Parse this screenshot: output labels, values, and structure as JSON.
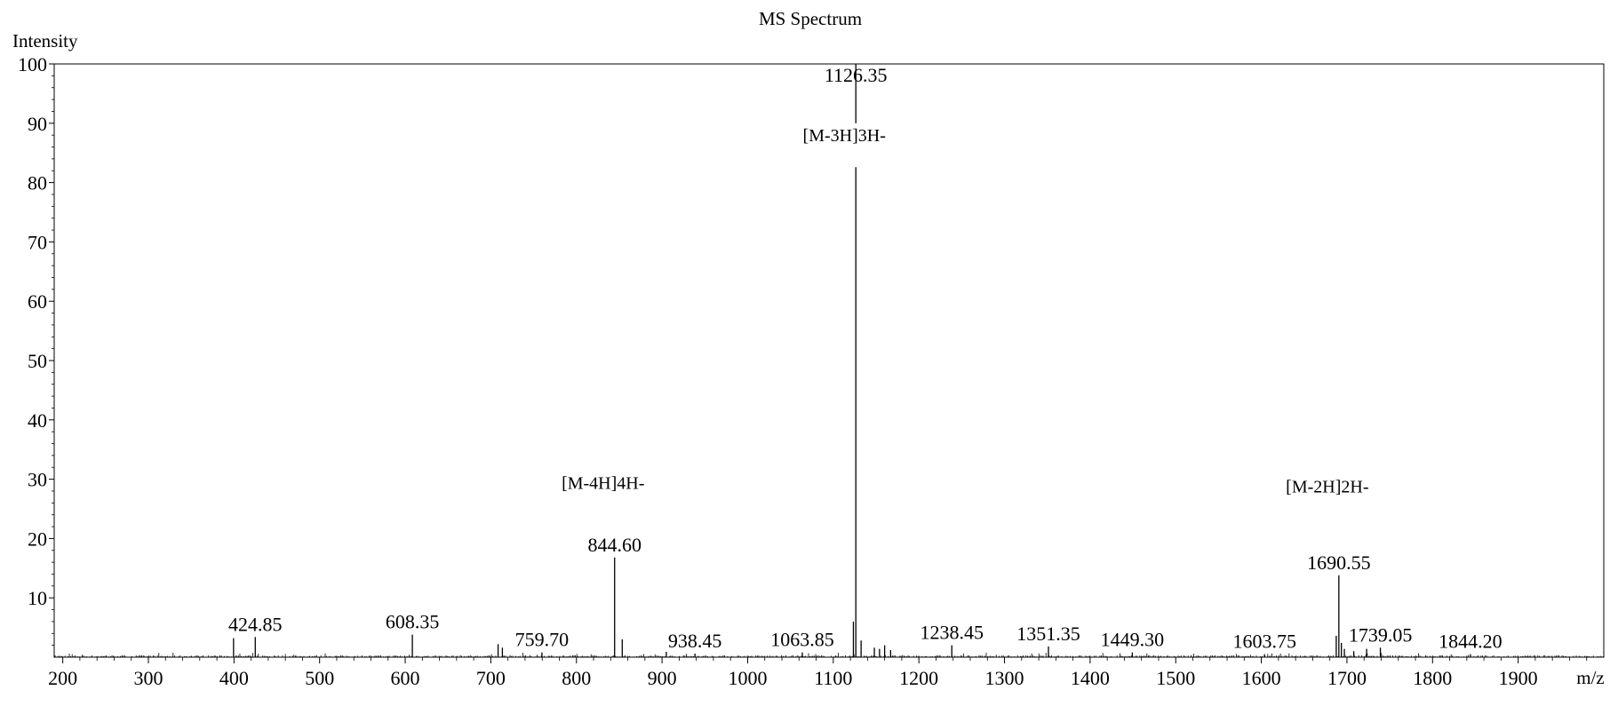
{
  "chart_data": {
    "type": "bar",
    "title": "MS Spectrum",
    "ylabel": "Intensity",
    "xlabel": "m/z",
    "xlim": [
      190,
      2000
    ],
    "ylim": [
      0,
      100
    ],
    "grid": false,
    "x_ticks": [
      200,
      300,
      400,
      500,
      600,
      700,
      800,
      900,
      1000,
      1100,
      1200,
      1300,
      1400,
      1500,
      1600,
      1700,
      1800,
      1900
    ],
    "y_ticks": [
      10,
      20,
      30,
      40,
      50,
      60,
      70,
      80,
      90,
      100
    ],
    "peaks": [
      {
        "mz": 399.5,
        "intensity": 3.2
      },
      {
        "mz": 424.85,
        "intensity": 3.4,
        "label": "424.85"
      },
      {
        "mz": 608.35,
        "intensity": 3.8,
        "label": "608.35"
      },
      {
        "mz": 708.5,
        "intensity": 2.2
      },
      {
        "mz": 713.5,
        "intensity": 1.6
      },
      {
        "mz": 759.7,
        "intensity": 0.8,
        "label": "759.70"
      },
      {
        "mz": 844.6,
        "intensity": 16.8,
        "label": "844.60"
      },
      {
        "mz": 853.5,
        "intensity": 3.0
      },
      {
        "mz": 905.0,
        "intensity": 0.9
      },
      {
        "mz": 938.45,
        "intensity": 0.6,
        "label": "938.45"
      },
      {
        "mz": 1063.85,
        "intensity": 0.8,
        "label": "1063.85"
      },
      {
        "mz": 1123.5,
        "intensity": 6.0
      },
      {
        "mz": 1126.35,
        "intensity": 100,
        "label": "1126.35"
      },
      {
        "mz": 1132.5,
        "intensity": 2.8
      },
      {
        "mz": 1148.0,
        "intensity": 1.6
      },
      {
        "mz": 1154.0,
        "intensity": 1.4
      },
      {
        "mz": 1160.0,
        "intensity": 2.0
      },
      {
        "mz": 1167.0,
        "intensity": 1.2
      },
      {
        "mz": 1238.45,
        "intensity": 2.0,
        "label": "1238.45"
      },
      {
        "mz": 1351.35,
        "intensity": 1.8,
        "label": "1351.35"
      },
      {
        "mz": 1449.3,
        "intensity": 0.8,
        "label": "1449.30"
      },
      {
        "mz": 1603.75,
        "intensity": 0.5,
        "label": "1603.75"
      },
      {
        "mz": 1687.5,
        "intensity": 3.6
      },
      {
        "mz": 1690.55,
        "intensity": 13.8,
        "label": "1690.55"
      },
      {
        "mz": 1693.5,
        "intensity": 2.4
      },
      {
        "mz": 1697.0,
        "intensity": 1.4
      },
      {
        "mz": 1708.0,
        "intensity": 1.0
      },
      {
        "mz": 1723.0,
        "intensity": 1.4
      },
      {
        "mz": 1739.05,
        "intensity": 1.6,
        "label": "1739.05"
      },
      {
        "mz": 1844.2,
        "intensity": 0.5,
        "label": "1844.20"
      }
    ],
    "annotations": [
      {
        "text": "[M-4H]4H-",
        "mz": 844.6,
        "intensity": 28.4
      },
      {
        "text": "[M-3H]3H-",
        "mz": 1126.35,
        "intensity": 87.0
      },
      {
        "text": "[M-2H]2H-",
        "mz": 1690.55,
        "intensity": 27.8
      }
    ]
  }
}
